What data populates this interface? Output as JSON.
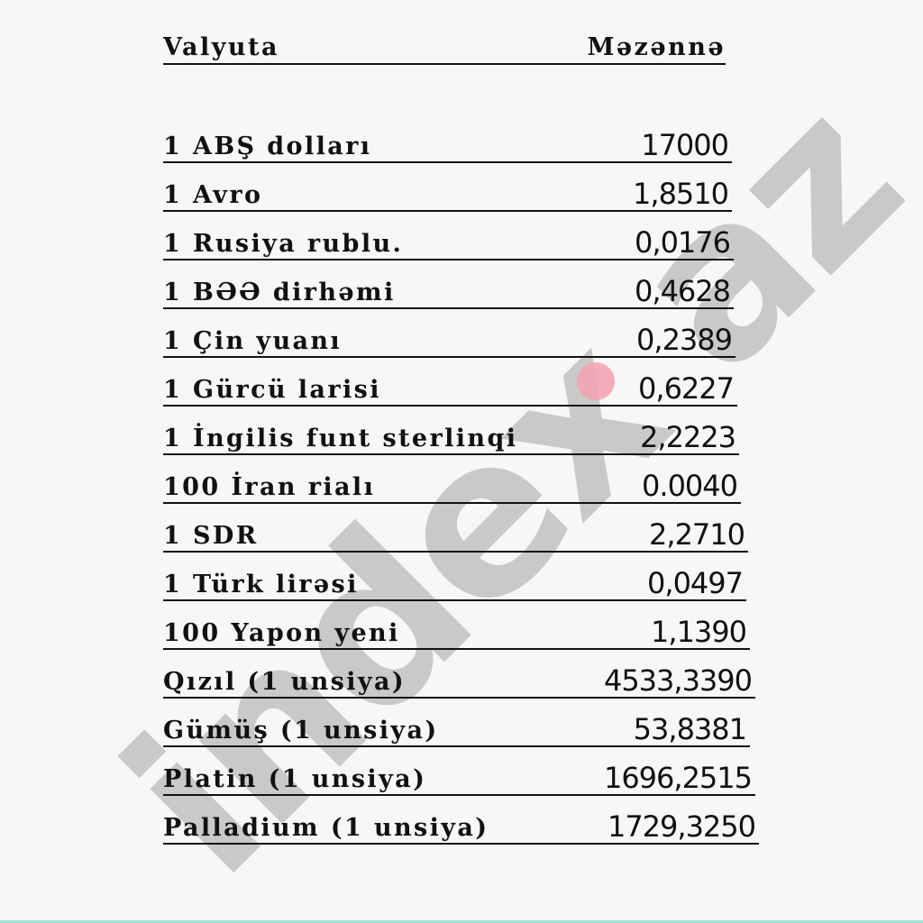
{
  "watermark": {
    "text": "index.az",
    "dot_color": "#f4a3b3"
  },
  "header": {
    "currency": "Valyuta",
    "rate": "Məzənnə"
  },
  "rows": [
    {
      "label": "1 ABŞ dolları",
      "value": "17000"
    },
    {
      "label": "1 Avro",
      "value": "1,8510"
    },
    {
      "label": "1 Rusiya rublu.",
      "value": "0,0176"
    },
    {
      "label": "1 BƏƏ dirhəmi",
      "value": "0,4628"
    },
    {
      "label": "1 Çin yuanı",
      "value": "0,2389"
    },
    {
      "label": "1 Gürcü larisi",
      "value": "0,6227"
    },
    {
      "label": "1 İngilis funt sterlinqi",
      "value": "2,2223"
    },
    {
      "label": "100 İran rialı",
      "value": "0.0040"
    },
    {
      "label": "1 SDR",
      "value": "2,2710"
    },
    {
      "label": "1 Türk lirəsi",
      "value": "0,0497"
    },
    {
      "label": "100 Yapon yeni",
      "value": "1,1390"
    },
    {
      "label": "Qızıl (1 unsiya)",
      "value": "4533,3390"
    },
    {
      "label": "Gümüş (1 unsiya)",
      "value": "53,8381"
    },
    {
      "label": "Platin (1 unsiya)",
      "value": "1696,2515"
    },
    {
      "label": "Palladium (1 unsiya)",
      "value": "1729,3250"
    }
  ]
}
